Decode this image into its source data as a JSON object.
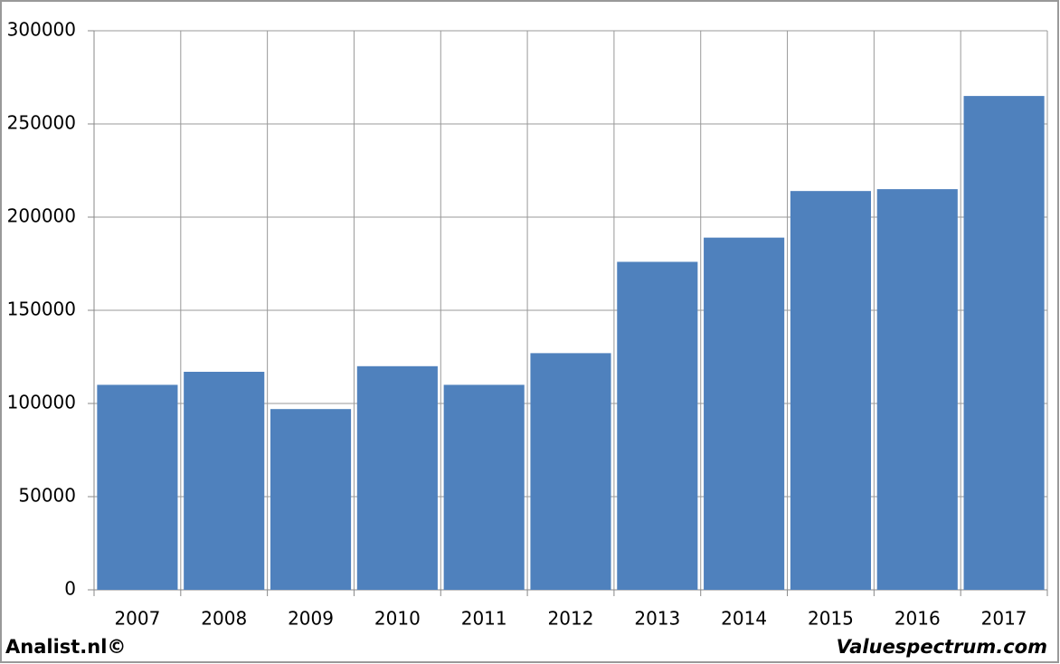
{
  "chart_data": {
    "type": "bar",
    "categories": [
      "2007",
      "2008",
      "2009",
      "2010",
      "2011",
      "2012",
      "2013",
      "2014",
      "2015",
      "2016",
      "2017"
    ],
    "values": [
      110000,
      117000,
      97000,
      120000,
      110000,
      127000,
      176000,
      189000,
      214000,
      215000,
      265000
    ],
    "color": "#4f81bd",
    "ylim": [
      0,
      300000
    ],
    "yticks": [
      0,
      50000,
      100000,
      150000,
      200000,
      250000,
      300000
    ],
    "grid": true,
    "footer_left": "Analist.nl©",
    "footer_right": "Valuespectrum.com"
  }
}
